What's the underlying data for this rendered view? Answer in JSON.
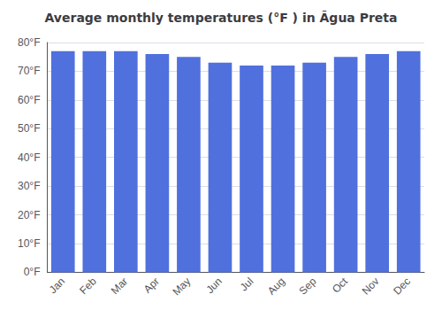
{
  "chart_data": {
    "type": "bar",
    "title": "Average monthly temperatures (°F ) in Ãgua Preta",
    "categories": [
      "Jan",
      "Feb",
      "Mar",
      "Apr",
      "May",
      "Jun",
      "Jul",
      "Aug",
      "Sep",
      "Oct",
      "Nov",
      "Dec"
    ],
    "values": [
      77,
      77,
      77,
      76,
      75,
      73,
      72,
      72,
      73,
      75,
      76,
      77
    ],
    "ylim": [
      0,
      80
    ],
    "yticks": [
      {
        "value": 0,
        "label": "0°F"
      },
      {
        "value": 10,
        "label": "10°F"
      },
      {
        "value": 20,
        "label": "20°F"
      },
      {
        "value": 30,
        "label": "30°F"
      },
      {
        "value": 40,
        "label": "40°F"
      },
      {
        "value": 50,
        "label": "50°F"
      },
      {
        "value": 60,
        "label": "60°F"
      },
      {
        "value": 70,
        "label": "70°F"
      },
      {
        "value": 80,
        "label": "80°F"
      }
    ],
    "grid": true
  }
}
